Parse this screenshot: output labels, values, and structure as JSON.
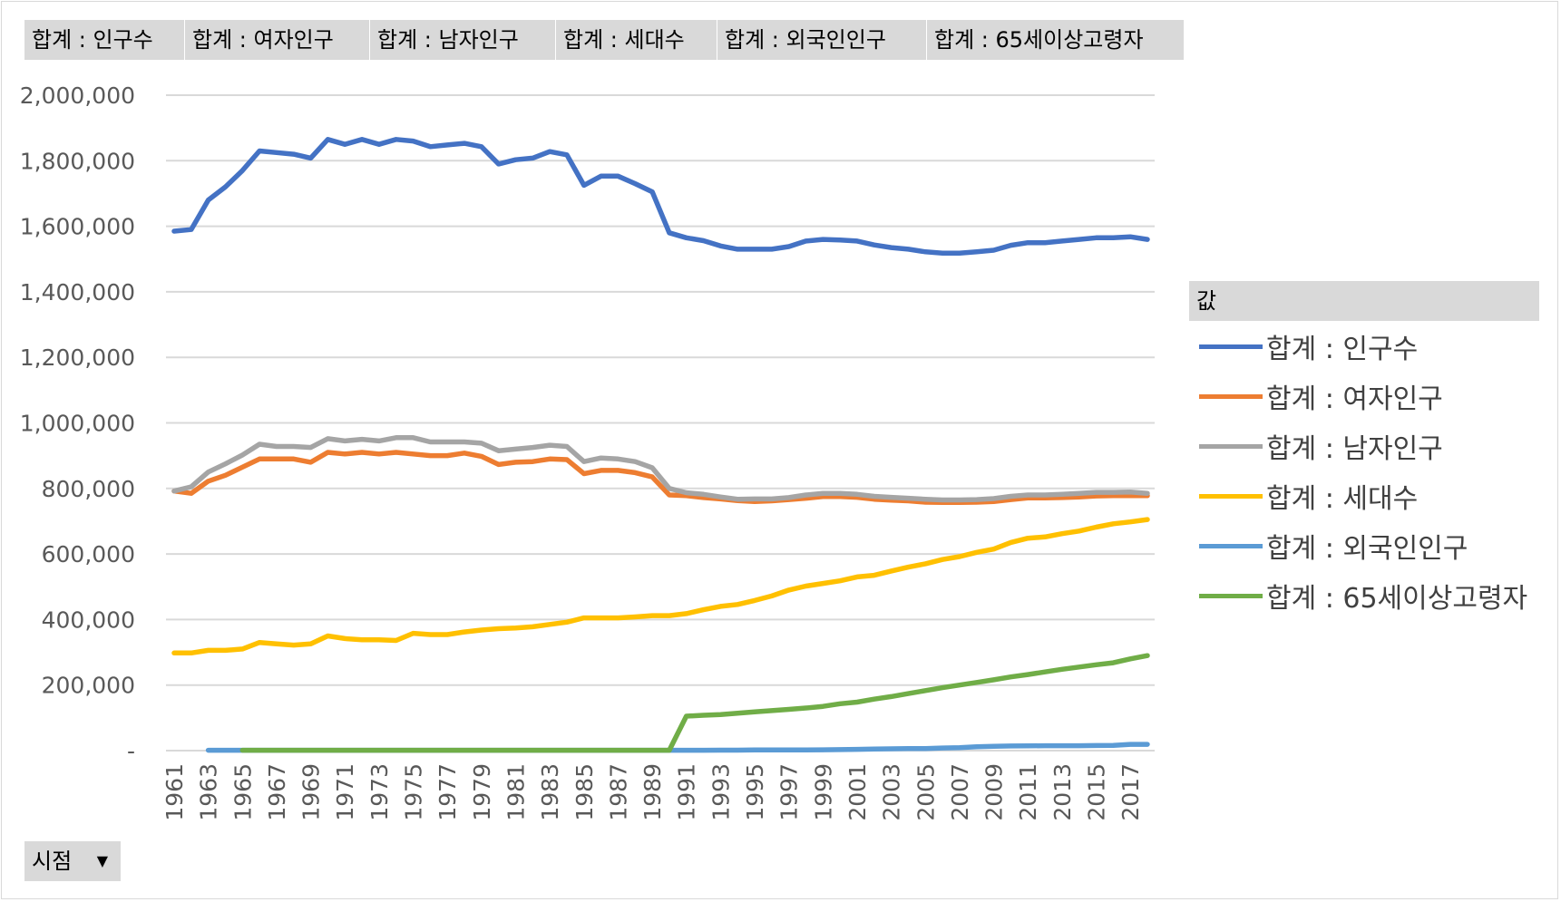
{
  "field_buttons": [
    "합계 : 인구수",
    "합계 : 여자인구",
    "합계 : 남자인구",
    "합계 : 세대수",
    "합계 : 외국인인구",
    "합계 : 65세이상고령자"
  ],
  "axis_field_button": "시점",
  "legend_title": "값",
  "chart_data": {
    "type": "line",
    "x": [
      1961,
      1962,
      1963,
      1964,
      1965,
      1966,
      1967,
      1968,
      1969,
      1970,
      1971,
      1972,
      1973,
      1974,
      1975,
      1976,
      1977,
      1978,
      1979,
      1980,
      1981,
      1982,
      1983,
      1984,
      1985,
      1986,
      1987,
      1988,
      1989,
      1990,
      1991,
      1992,
      1993,
      1994,
      1995,
      1996,
      1997,
      1998,
      1999,
      2000,
      2001,
      2002,
      2003,
      2004,
      2005,
      2006,
      2007,
      2008,
      2009,
      2010,
      2011,
      2012,
      2013,
      2014,
      2015,
      2016,
      2017,
      2018
    ],
    "x_tick_labels": [
      "1961",
      "1963",
      "1965",
      "1967",
      "1969",
      "1971",
      "1973",
      "1975",
      "1977",
      "1979",
      "1981",
      "1983",
      "1985",
      "1987",
      "1989",
      "1991",
      "1993",
      "1995",
      "1997",
      "1999",
      "2001",
      "2003",
      "2005",
      "2007",
      "2009",
      "2011",
      "2013",
      "2015",
      "2017"
    ],
    "y_tick_labels": [
      "2,000,000",
      "1,800,000",
      "1,600,000",
      "1,400,000",
      "1,200,000",
      "1,000,000",
      "800,000",
      "600,000",
      "400,000",
      "200,000",
      "-"
    ],
    "ylim": [
      0,
      2000000
    ],
    "grid": true,
    "legend_position": "right",
    "series": [
      {
        "name": "합계 : 인구수",
        "color": "#4472c4",
        "values": [
          1585000,
          1590000,
          1680000,
          1720000,
          1770000,
          1830000,
          1825000,
          1820000,
          1808000,
          1865000,
          1850000,
          1865000,
          1850000,
          1865000,
          1860000,
          1843000,
          1848000,
          1853000,
          1843000,
          1790000,
          1803000,
          1808000,
          1828000,
          1818000,
          1725000,
          1753000,
          1753000,
          1730000,
          1705000,
          1580000,
          1565000,
          1556000,
          1540000,
          1530000,
          1530000,
          1530000,
          1538000,
          1555000,
          1560000,
          1558000,
          1555000,
          1543000,
          1535000,
          1530000,
          1522000,
          1518000,
          1518000,
          1522000,
          1527000,
          1542000,
          1550000,
          1550000,
          1555000,
          1560000,
          1565000,
          1565000,
          1568000,
          1560000
        ]
      },
      {
        "name": "합계 : 여자인구",
        "color": "#ed7d31",
        "values": [
          792000,
          785000,
          822000,
          840000,
          865000,
          890000,
          890000,
          890000,
          880000,
          910000,
          905000,
          910000,
          905000,
          910000,
          905000,
          900000,
          900000,
          908000,
          898000,
          873000,
          880000,
          882000,
          890000,
          888000,
          845000,
          855000,
          855000,
          848000,
          835000,
          780000,
          778000,
          772000,
          768000,
          763000,
          760000,
          762000,
          766000,
          770000,
          775000,
          775000,
          773000,
          767000,
          764000,
          762000,
          758000,
          757000,
          757000,
          758000,
          760000,
          766000,
          771000,
          771000,
          772000,
          774000,
          777000,
          778000,
          778000,
          778000
        ]
      },
      {
        "name": "합계 : 남자인구",
        "color": "#a5a5a5",
        "values": [
          792000,
          805000,
          850000,
          875000,
          902000,
          935000,
          928000,
          928000,
          925000,
          952000,
          945000,
          950000,
          945000,
          955000,
          955000,
          942000,
          942000,
          942000,
          938000,
          915000,
          920000,
          925000,
          932000,
          928000,
          882000,
          893000,
          890000,
          882000,
          863000,
          800000,
          787000,
          782000,
          774000,
          767000,
          768000,
          768000,
          772000,
          780000,
          785000,
          785000,
          782000,
          776000,
          773000,
          770000,
          767000,
          765000,
          765000,
          766000,
          769000,
          776000,
          780000,
          780000,
          782000,
          785000,
          788000,
          788000,
          789000,
          785000
        ]
      },
      {
        "name": "합계 : 세대수",
        "color": "#ffc000",
        "values": [
          298000,
          298000,
          306000,
          306000,
          310000,
          330000,
          326000,
          322000,
          326000,
          350000,
          342000,
          338000,
          338000,
          336000,
          358000,
          354000,
          354000,
          362000,
          368000,
          372000,
          374000,
          378000,
          385000,
          392000,
          405000,
          405000,
          405000,
          408000,
          412000,
          412000,
          418000,
          430000,
          440000,
          446000,
          458000,
          472000,
          490000,
          502000,
          510000,
          518000,
          530000,
          535000,
          548000,
          560000,
          570000,
          583000,
          592000,
          605000,
          615000,
          635000,
          648000,
          652000,
          662000,
          670000,
          682000,
          692000,
          698000,
          705000
        ]
      },
      {
        "name": "합계 : 외국인인구",
        "color": "#5b9bd5",
        "values": [
          null,
          null,
          1000,
          1000,
          1000,
          1000,
          1000,
          1000,
          1000,
          1000,
          1000,
          1000,
          1000,
          1000,
          1000,
          1000,
          1000,
          1000,
          1000,
          1000,
          1000,
          1000,
          1000,
          1000,
          1000,
          1000,
          1000,
          1000,
          1000,
          1000,
          1000,
          1000,
          1500,
          1500,
          1800,
          2000,
          2200,
          2300,
          2500,
          3000,
          4000,
          5000,
          5500,
          6000,
          6500,
          8000,
          9000,
          12000,
          13000,
          14000,
          14500,
          15000,
          15000,
          15000,
          15500,
          16000,
          19000,
          19000
        ]
      },
      {
        "name": "합계 : 65세이상고령자",
        "color": "#70ad47",
        "values": [
          null,
          null,
          null,
          null,
          1000,
          1000,
          1000,
          1000,
          1000,
          1000,
          1000,
          1000,
          1000,
          1000,
          1000,
          1000,
          1000,
          1000,
          1000,
          1000,
          1000,
          1000,
          1000,
          1000,
          1000,
          1000,
          1000,
          1000,
          1000,
          1000,
          105000,
          108000,
          110000,
          114000,
          118000,
          122000,
          126000,
          130000,
          135000,
          143000,
          148000,
          157000,
          165000,
          174000,
          183000,
          192000,
          200000,
          208000,
          216000,
          225000,
          232000,
          240000,
          248000,
          255000,
          262000,
          268000,
          280000,
          290000
        ]
      }
    ]
  }
}
